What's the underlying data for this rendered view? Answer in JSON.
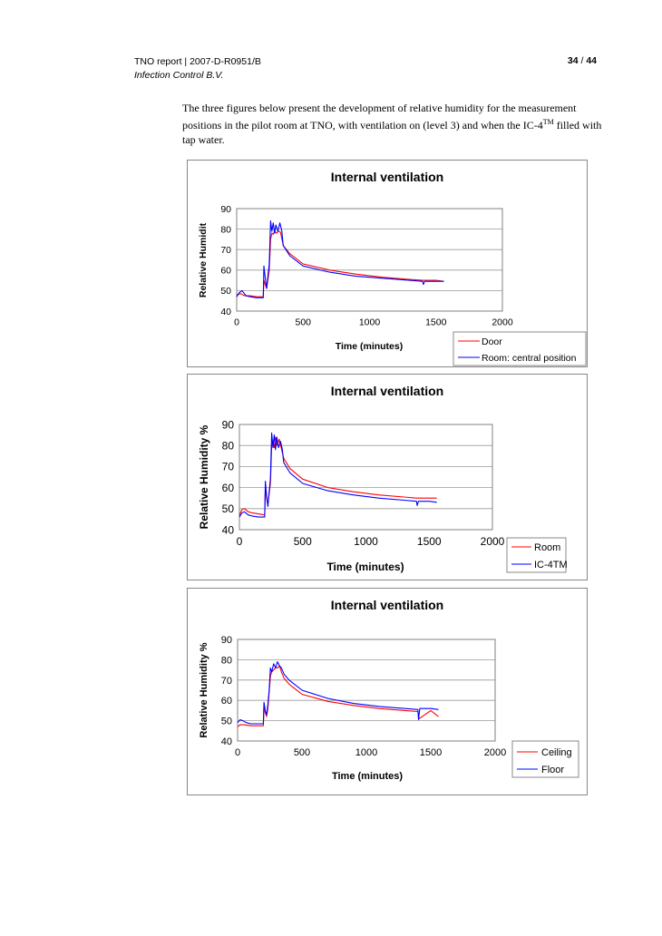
{
  "header": {
    "report": "TNO report | 2007-D-R0951/B",
    "client": "Infection Control B.V.",
    "page_current": "34",
    "page_sep": "/",
    "page_total": "44"
  },
  "intro": {
    "text_before_sup": "The three figures below present the development of relative humidity for the measurement positions in the pilot room at TNO, with ventilation on (level 3) and when the IC-4",
    "sup": "TM",
    "text_after_sup": " filled with tap water."
  },
  "chart_data": [
    {
      "type": "line",
      "title": "Internal ventilation",
      "xlabel": "Time (minutes)",
      "ylabel": "Relative Humidit",
      "xlim": [
        0,
        2000
      ],
      "ylim": [
        40,
        90
      ],
      "xticks": [
        0,
        500,
        1000,
        1500,
        2000
      ],
      "yticks": [
        40,
        50,
        60,
        70,
        80,
        90
      ],
      "grid": true,
      "legend": "bottom-right",
      "series": [
        {
          "name": "Door",
          "color": "#ff0000",
          "x": [
            0,
            30,
            60,
            100,
            150,
            200,
            205,
            215,
            225,
            235,
            245,
            255,
            265,
            275,
            285,
            300,
            315,
            330,
            350,
            400,
            500,
            700,
            900,
            1100,
            1300,
            1400,
            1410,
            1500,
            1560
          ],
          "y": [
            48,
            48.5,
            47.5,
            47.5,
            47,
            47,
            55,
            53,
            51,
            55,
            60,
            75,
            78,
            77.5,
            79,
            78,
            79,
            78.5,
            72,
            68,
            63,
            60,
            58,
            56.5,
            55.5,
            55,
            55,
            55,
            54.5
          ]
        },
        {
          "name": "Room: central position",
          "color": "#0000ff",
          "x": [
            0,
            20,
            40,
            70,
            100,
            150,
            200,
            205,
            215,
            225,
            235,
            245,
            255,
            265,
            275,
            285,
            295,
            310,
            325,
            340,
            350,
            400,
            500,
            700,
            900,
            1100,
            1300,
            1400,
            1405,
            1415,
            1500,
            1560
          ],
          "y": [
            47,
            49,
            50,
            47.5,
            47,
            46.5,
            46.5,
            62,
            56,
            51,
            57,
            63,
            84,
            79,
            83,
            78,
            82,
            79,
            83,
            79,
            72,
            67,
            62,
            59,
            57,
            56,
            55,
            54.5,
            53,
            54.5,
            54.5,
            54.5
          ]
        }
      ]
    },
    {
      "type": "line",
      "title": "Internal ventilation",
      "xlabel": "Time (minutes)",
      "ylabel": "Relative Humidity %",
      "xlim": [
        0,
        2000
      ],
      "ylim": [
        40,
        90
      ],
      "xticks": [
        0,
        500,
        1000,
        1500,
        2000
      ],
      "yticks": [
        40,
        50,
        60,
        70,
        80,
        90
      ],
      "grid": true,
      "legend": "bottom-right",
      "series": [
        {
          "name": "Room",
          "color": "#ff0000",
          "x": [
            0,
            20,
            40,
            70,
            100,
            150,
            200,
            205,
            215,
            225,
            235,
            245,
            255,
            265,
            275,
            285,
            300,
            315,
            330,
            350,
            400,
            500,
            700,
            900,
            1100,
            1300,
            1400,
            1500,
            1560
          ],
          "y": [
            47,
            49.5,
            50,
            48.5,
            48,
            47.5,
            47,
            60,
            55,
            52,
            57,
            62,
            80,
            82,
            79,
            84,
            80,
            83,
            79,
            74,
            69,
            64,
            60,
            58,
            56.5,
            55.5,
            55,
            55,
            55
          ]
        },
        {
          "name": "IC-4TM",
          "color": "#0000ff",
          "x": [
            0,
            20,
            40,
            70,
            100,
            150,
            200,
            205,
            215,
            225,
            235,
            245,
            255,
            265,
            275,
            285,
            295,
            310,
            325,
            340,
            350,
            400,
            500,
            700,
            900,
            1100,
            1300,
            1400,
            1405,
            1415,
            1500,
            1560
          ],
          "y": [
            46,
            48,
            48.5,
            47,
            46.5,
            46,
            46,
            63,
            56,
            51,
            58,
            64,
            86,
            79,
            85,
            78,
            84,
            79,
            82,
            78,
            72,
            67,
            62,
            58.5,
            56.5,
            55,
            54,
            53.5,
            51.5,
            53.5,
            53.5,
            53
          ]
        }
      ]
    },
    {
      "type": "line",
      "title": "Internal ventilation",
      "xlabel": "Time (minutes)",
      "ylabel": "Relative Humidity %",
      "xlim": [
        0,
        2000
      ],
      "ylim": [
        40,
        90
      ],
      "xticks": [
        0,
        500,
        1000,
        1500,
        2000
      ],
      "yticks": [
        40,
        50,
        60,
        70,
        80,
        90
      ],
      "grid": true,
      "legend": "bottom-right",
      "series": [
        {
          "name": "Ceiling",
          "color": "#ff0000",
          "x": [
            0,
            20,
            50,
            100,
            150,
            200,
            205,
            215,
            225,
            235,
            245,
            255,
            265,
            280,
            295,
            310,
            325,
            340,
            360,
            400,
            500,
            700,
            900,
            1100,
            1300,
            1400,
            1410,
            1500,
            1560
          ],
          "y": [
            47,
            48,
            48,
            47.5,
            47.5,
            47.5,
            57,
            54,
            52,
            56,
            64,
            72,
            74,
            75,
            76,
            76,
            77,
            74,
            71,
            68,
            63,
            59.5,
            57.5,
            56,
            55,
            54.5,
            51,
            55,
            52
          ]
        },
        {
          "name": "Floor",
          "color": "#0000ff",
          "x": [
            0,
            20,
            40,
            70,
            100,
            150,
            200,
            205,
            215,
            225,
            235,
            245,
            255,
            265,
            280,
            295,
            310,
            325,
            340,
            360,
            400,
            500,
            700,
            900,
            1100,
            1300,
            1400,
            1405,
            1415,
            1500,
            1560
          ],
          "y": [
            49,
            50.5,
            50,
            49,
            48.5,
            48.5,
            48.5,
            59,
            55,
            53,
            58,
            65,
            76,
            74,
            78,
            76,
            79,
            77,
            76,
            73,
            70,
            65,
            61,
            58.5,
            57,
            56,
            55.5,
            50.5,
            56,
            56,
            55.5
          ]
        }
      ]
    }
  ]
}
